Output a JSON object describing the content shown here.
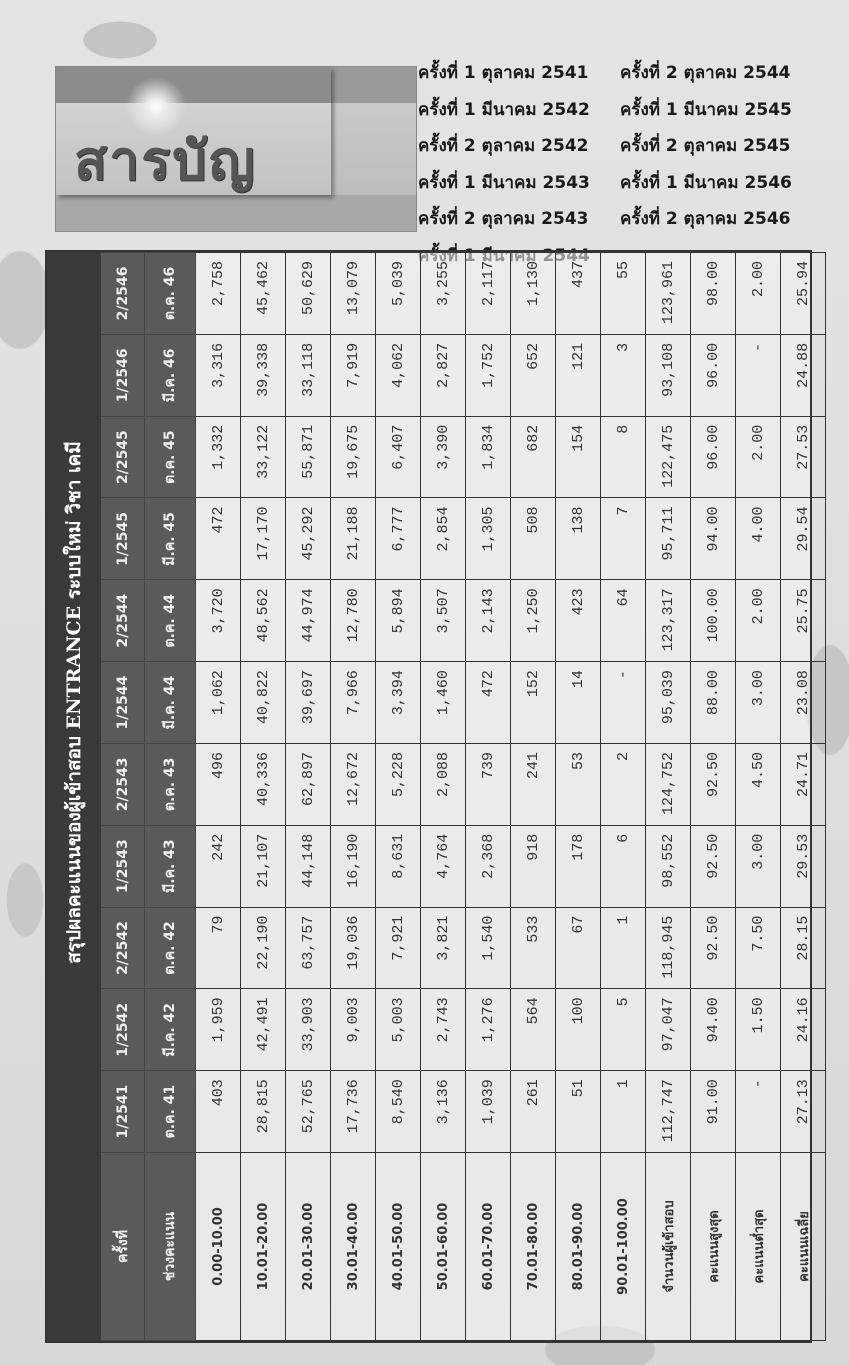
{
  "logo": {
    "title": "สารบัญ"
  },
  "toc": {
    "column1": [
      "ครั้งที่ 1 ตุลาคม 2541",
      "ครั้งที่ 1 มีนาคม 2542",
      "ครั้งที่ 2 ตุลาคม 2542",
      "ครั้งที่ 1 มีนาคม 2543",
      "ครั้งที่ 2 ตุลาคม 2543",
      "ครั้งที่ 1 มีนาคม 2544"
    ],
    "column2": [
      "ครั้งที่ 2 ตุลาคม 2544",
      "ครั้งที่ 1 มีนาคม 2545",
      "ครั้งที่ 2 ตุลาคม 2545",
      "ครั้งที่ 1 มีนาคม 2546",
      "ครั้งที่ 2 ตุลาคม 2546"
    ]
  },
  "table": {
    "title": "สรุปผลคะแนนของผู้เข้าสอบ ENTRANCE ระบบใหม่ วิชา เคมี",
    "corner_top": "ครั้งที่",
    "corner_bottom": "ช่วงคะแนน",
    "sessions": [
      "1/2541",
      "1/2542",
      "2/2542",
      "1/2543",
      "2/2543",
      "1/2544",
      "2/2544",
      "1/2545",
      "2/2545",
      "1/2546",
      "2/2546"
    ],
    "months": [
      "ต.ค. 41",
      "มี.ค. 42",
      "ต.ค. 42",
      "มี.ค. 43",
      "ต.ค. 43",
      "มี.ค. 44",
      "ต.ค. 44",
      "มี.ค. 45",
      "ต.ค. 45",
      "มี.ค. 46",
      "ต.ค. 46"
    ],
    "rows": [
      {
        "label": "0.00-10.00",
        "values": [
          "403",
          "1,959",
          "79",
          "242",
          "496",
          "1,062",
          "3,720",
          "472",
          "1,332",
          "3,316",
          "2,758"
        ]
      },
      {
        "label": "10.01-20.00",
        "values": [
          "28,815",
          "42,491",
          "22,190",
          "21,107",
          "40,336",
          "40,822",
          "48,562",
          "17,170",
          "33,122",
          "39,338",
          "45,462"
        ]
      },
      {
        "label": "20.01-30.00",
        "values": [
          "52,765",
          "33,903",
          "63,757",
          "44,148",
          "62,897",
          "39,697",
          "44,974",
          "45,292",
          "55,871",
          "33,118",
          "50,629"
        ]
      },
      {
        "label": "30.01-40.00",
        "values": [
          "17,736",
          "9,003",
          "19,036",
          "16,190",
          "12,672",
          "7,966",
          "12,780",
          "21,188",
          "19,675",
          "7,919",
          "13,079"
        ]
      },
      {
        "label": "40.01-50.00",
        "values": [
          "8,540",
          "5,003",
          "7,921",
          "8,631",
          "5,228",
          "3,394",
          "5,894",
          "6,777",
          "6,407",
          "4,062",
          "5,039"
        ]
      },
      {
        "label": "50.01-60.00",
        "values": [
          "3,136",
          "2,743",
          "3,821",
          "4,764",
          "2,088",
          "1,460",
          "3,507",
          "2,854",
          "3,390",
          "2,827",
          "3,255"
        ]
      },
      {
        "label": "60.01-70.00",
        "values": [
          "1,039",
          "1,276",
          "1,540",
          "2,368",
          "739",
          "472",
          "2,143",
          "1,305",
          "1,834",
          "1,752",
          "2,117"
        ]
      },
      {
        "label": "70.01-80.00",
        "values": [
          "261",
          "564",
          "533",
          "918",
          "241",
          "152",
          "1,250",
          "508",
          "682",
          "652",
          "1,130"
        ]
      },
      {
        "label": "80.01-90.00",
        "values": [
          "51",
          "100",
          "67",
          "178",
          "53",
          "14",
          "423",
          "138",
          "154",
          "121",
          "437"
        ]
      },
      {
        "label": "90.01-100.00",
        "values": [
          "1",
          "5",
          "1",
          "6",
          "2",
          "-",
          "64",
          "7",
          "8",
          "3",
          "55"
        ]
      },
      {
        "label": "จำนวนผู้เข้าสอบ",
        "values": [
          "112,747",
          "97,047",
          "118,945",
          "98,552",
          "124,752",
          "95,039",
          "123,317",
          "95,711",
          "122,475",
          "93,108",
          "123,961"
        ]
      },
      {
        "label": "คะแนนสูงสุด",
        "values": [
          "91.00",
          "94.00",
          "92.50",
          "92.50",
          "92.50",
          "88.00",
          "100.00",
          "94.00",
          "96.00",
          "96.00",
          "98.00"
        ]
      },
      {
        "label": "คะแนนต่ำสุด",
        "values": [
          "-",
          "1.50",
          "7.50",
          "3.00",
          "4.50",
          "3.00",
          "2.00",
          "4.00",
          "2.00",
          "-",
          "2.00"
        ]
      },
      {
        "label": "คะแนนเฉลี่ย",
        "values": [
          "27.13",
          "24.16",
          "28.15",
          "29.53",
          "24.71",
          "23.08",
          "25.75",
          "29.54",
          "27.53",
          "24.88",
          "25.94"
        ]
      }
    ]
  }
}
